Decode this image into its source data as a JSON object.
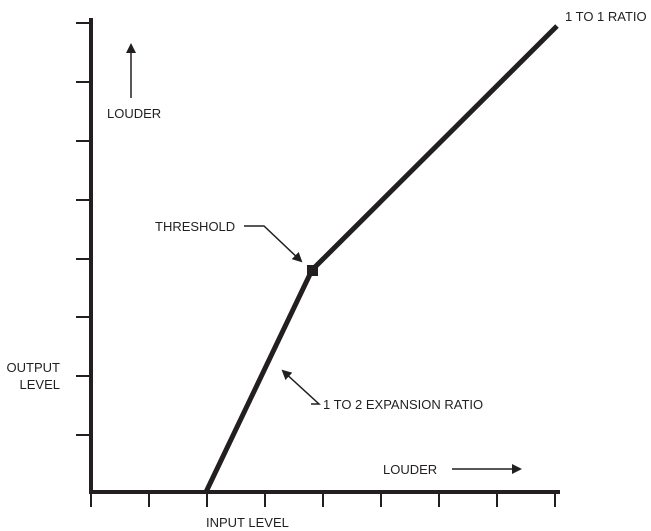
{
  "diagram": {
    "labels": {
      "one_to_one": "1 TO 1 RATIO",
      "louder_up": "LOUDER",
      "threshold": "THRESHOLD",
      "output_level_line1": "OUTPUT",
      "output_level_line2": "LEVEL",
      "expansion": "1 TO 2 EXPANSION RATIO",
      "louder_right": "LOUDER",
      "input_level": "INPUT LEVEL"
    },
    "colors": {
      "ink": "#231f20"
    }
  }
}
